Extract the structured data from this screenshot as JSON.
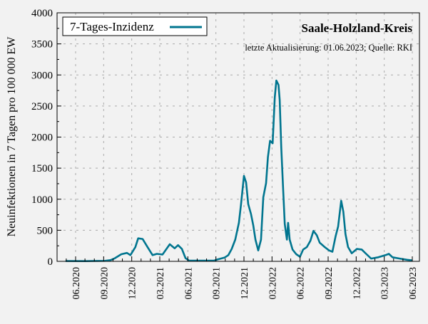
{
  "chart_data": {
    "type": "line",
    "title": "Saale-Holzland-Kreis",
    "subtitle": "letzte Aktualisierung: 01.06.2023; Quelle: RKI",
    "xlabel": "",
    "ylabel": "Neuinfektionen in 7 Tagen pro 100 000 EW",
    "ylim": [
      0,
      4000
    ],
    "yticks": [
      0,
      500,
      1000,
      1500,
      2000,
      2500,
      3000,
      3500,
      4000
    ],
    "xticks": [
      "06.2020",
      "09.2020",
      "12.2020",
      "03.2021",
      "06.2021",
      "09.2021",
      "12.2021",
      "03.2022",
      "06.2022",
      "09.2022",
      "12.2022",
      "03.2023",
      "06.2023"
    ],
    "grid": true,
    "legend_position": "top-left",
    "series": [
      {
        "name": "7-Tages-Inzidenz",
        "color": "#00758f",
        "points": [
          [
            "2020-04-29",
            5
          ],
          [
            "2020-07-03",
            3
          ],
          [
            "2020-09-05",
            8
          ],
          [
            "2020-09-23",
            20
          ],
          [
            "2020-10-05",
            45
          ],
          [
            "2020-10-28",
            115
          ],
          [
            "2020-11-16",
            135
          ],
          [
            "2020-11-27",
            100
          ],
          [
            "2020-12-13",
            230
          ],
          [
            "2020-12-22",
            370
          ],
          [
            "2021-01-06",
            360
          ],
          [
            "2021-01-22",
            230
          ],
          [
            "2021-02-08",
            100
          ],
          [
            "2021-02-22",
            120
          ],
          [
            "2021-03-10",
            110
          ],
          [
            "2021-04-03",
            275
          ],
          [
            "2021-04-19",
            210
          ],
          [
            "2021-04-30",
            260
          ],
          [
            "2021-05-12",
            200
          ],
          [
            "2021-05-24",
            50
          ],
          [
            "2021-06-05",
            10
          ],
          [
            "2021-07-09",
            10
          ],
          [
            "2021-08-25",
            10
          ],
          [
            "2021-09-06",
            30
          ],
          [
            "2021-09-29",
            60
          ],
          [
            "2021-10-11",
            100
          ],
          [
            "2021-10-22",
            200
          ],
          [
            "2021-11-03",
            350
          ],
          [
            "2021-11-15",
            620
          ],
          [
            "2021-11-22",
            920
          ],
          [
            "2021-12-01",
            1375
          ],
          [
            "2021-12-08",
            1270
          ],
          [
            "2021-12-15",
            920
          ],
          [
            "2021-12-24",
            760
          ],
          [
            "2022-01-01",
            575
          ],
          [
            "2022-01-08",
            350
          ],
          [
            "2022-01-17",
            175
          ],
          [
            "2022-01-26",
            350
          ],
          [
            "2022-02-03",
            1030
          ],
          [
            "2022-02-12",
            1260
          ],
          [
            "2022-02-18",
            1680
          ],
          [
            "2022-02-25",
            1940
          ],
          [
            "2022-03-03",
            1900
          ],
          [
            "2022-03-10",
            2640
          ],
          [
            "2022-03-15",
            2910
          ],
          [
            "2022-03-22",
            2840
          ],
          [
            "2022-03-26",
            2600
          ],
          [
            "2022-03-31",
            1830
          ],
          [
            "2022-04-07",
            1140
          ],
          [
            "2022-04-12",
            600
          ],
          [
            "2022-04-19",
            350
          ],
          [
            "2022-04-23",
            620
          ],
          [
            "2022-04-28",
            350
          ],
          [
            "2022-05-07",
            190
          ],
          [
            "2022-05-19",
            115
          ],
          [
            "2022-05-31",
            75
          ],
          [
            "2022-06-11",
            190
          ],
          [
            "2022-06-23",
            230
          ],
          [
            "2022-07-04",
            330
          ],
          [
            "2022-07-14",
            490
          ],
          [
            "2022-07-25",
            420
          ],
          [
            "2022-08-04",
            300
          ],
          [
            "2022-08-20",
            230
          ],
          [
            "2022-09-04",
            175
          ],
          [
            "2022-09-15",
            155
          ],
          [
            "2022-09-25",
            400
          ],
          [
            "2022-10-03",
            560
          ],
          [
            "2022-10-13",
            975
          ],
          [
            "2022-10-20",
            800
          ],
          [
            "2022-10-27",
            440
          ],
          [
            "2022-11-05",
            230
          ],
          [
            "2022-11-17",
            130
          ],
          [
            "2022-12-03",
            200
          ],
          [
            "2022-12-19",
            190
          ],
          [
            "2023-01-03",
            120
          ],
          [
            "2023-01-19",
            45
          ],
          [
            "2023-02-12",
            65
          ],
          [
            "2023-03-05",
            100
          ],
          [
            "2023-03-16",
            120
          ],
          [
            "2023-03-28",
            65
          ],
          [
            "2023-04-21",
            45
          ],
          [
            "2023-05-14",
            25
          ],
          [
            "2023-06-01",
            15
          ]
        ]
      }
    ]
  }
}
